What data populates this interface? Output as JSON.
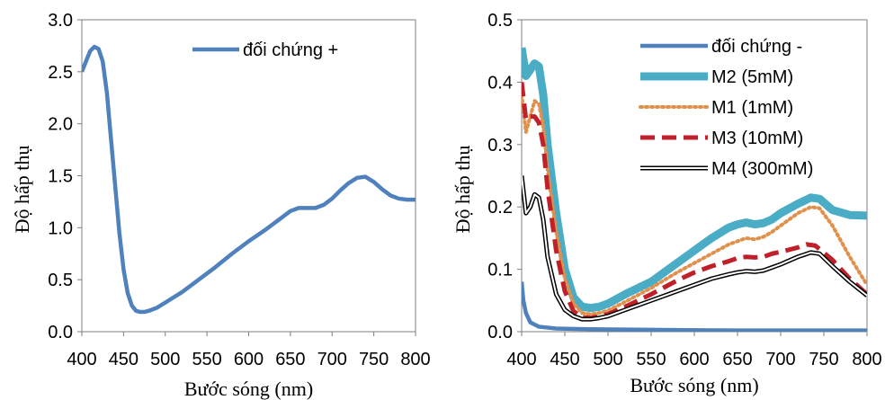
{
  "chart_data": [
    {
      "type": "line",
      "xlabel": "Bước sóng (nm)",
      "ylabel": "Độ hấp thụ",
      "xlim": [
        400,
        800
      ],
      "ylim": [
        0,
        3.0
      ],
      "x_ticks": [
        "400",
        "450",
        "500",
        "550",
        "600",
        "650",
        "700",
        "750",
        "800"
      ],
      "y_ticks": [
        "0.0",
        "0.5",
        "1.0",
        "1.5",
        "2.0",
        "2.5",
        "3.0"
      ],
      "grid": false,
      "legend": "top-right",
      "series": [
        {
          "name": "đối chứng +",
          "color": "#4F81BD",
          "style": "solid",
          "points": [
            [
              400,
              2.5
            ],
            [
              405,
              2.6
            ],
            [
              410,
              2.7
            ],
            [
              415,
              2.74
            ],
            [
              420,
              2.72
            ],
            [
              425,
              2.6
            ],
            [
              430,
              2.3
            ],
            [
              435,
              1.85
            ],
            [
              440,
              1.4
            ],
            [
              445,
              0.95
            ],
            [
              450,
              0.6
            ],
            [
              455,
              0.37
            ],
            [
              460,
              0.25
            ],
            [
              465,
              0.2
            ],
            [
              470,
              0.19
            ],
            [
              475,
              0.19
            ],
            [
              480,
              0.2
            ],
            [
              490,
              0.23
            ],
            [
              500,
              0.28
            ],
            [
              520,
              0.38
            ],
            [
              540,
              0.5
            ],
            [
              560,
              0.62
            ],
            [
              580,
              0.75
            ],
            [
              600,
              0.87
            ],
            [
              620,
              0.98
            ],
            [
              640,
              1.1
            ],
            [
              650,
              1.16
            ],
            [
              660,
              1.19
            ],
            [
              670,
              1.19
            ],
            [
              680,
              1.19
            ],
            [
              690,
              1.22
            ],
            [
              700,
              1.28
            ],
            [
              710,
              1.36
            ],
            [
              720,
              1.43
            ],
            [
              730,
              1.48
            ],
            [
              740,
              1.49
            ],
            [
              750,
              1.44
            ],
            [
              760,
              1.37
            ],
            [
              770,
              1.31
            ],
            [
              780,
              1.28
            ],
            [
              790,
              1.27
            ],
            [
              800,
              1.27
            ]
          ]
        }
      ]
    },
    {
      "type": "line",
      "xlabel": "Bước sóng (nm)",
      "ylabel": "Độ hấp thụ",
      "xlim": [
        400,
        800
      ],
      "ylim": [
        0,
        0.5
      ],
      "x_ticks": [
        "400",
        "450",
        "500",
        "550",
        "600",
        "650",
        "700",
        "750",
        "800"
      ],
      "y_ticks": [
        "0.0",
        "0.1",
        "0.2",
        "0.3",
        "0.4",
        "0.5"
      ],
      "grid": false,
      "legend": "top-right",
      "series": [
        {
          "name": "đối chứng -",
          "color": "#4F81BD",
          "style": "solid",
          "points": [
            [
              400,
              0.08
            ],
            [
              402,
              0.05
            ],
            [
              405,
              0.03
            ],
            [
              410,
              0.015
            ],
            [
              420,
              0.008
            ],
            [
              440,
              0.005
            ],
            [
              480,
              0.004
            ],
            [
              550,
              0.003
            ],
            [
              650,
              0.002
            ],
            [
              800,
              0.002
            ]
          ]
        },
        {
          "name": "M2 (5mM)",
          "color": "#4BACC6",
          "style": "thick",
          "points": [
            [
              400,
              0.455
            ],
            [
              405,
              0.41
            ],
            [
              410,
              0.42
            ],
            [
              415,
              0.43
            ],
            [
              420,
              0.425
            ],
            [
              425,
              0.38
            ],
            [
              430,
              0.3
            ],
            [
              440,
              0.19
            ],
            [
              450,
              0.1
            ],
            [
              460,
              0.055
            ],
            [
              470,
              0.04
            ],
            [
              480,
              0.038
            ],
            [
              490,
              0.04
            ],
            [
              500,
              0.045
            ],
            [
              520,
              0.06
            ],
            [
              550,
              0.08
            ],
            [
              580,
              0.11
            ],
            [
              600,
              0.13
            ],
            [
              620,
              0.15
            ],
            [
              640,
              0.167
            ],
            [
              650,
              0.172
            ],
            [
              660,
              0.175
            ],
            [
              670,
              0.172
            ],
            [
              680,
              0.174
            ],
            [
              690,
              0.18
            ],
            [
              700,
              0.19
            ],
            [
              720,
              0.205
            ],
            [
              735,
              0.215
            ],
            [
              745,
              0.213
            ],
            [
              760,
              0.195
            ],
            [
              780,
              0.187
            ],
            [
              800,
              0.186
            ]
          ]
        },
        {
          "name": "M1  (1mM)",
          "color": "#E0904A",
          "style": "dotted",
          "points": [
            [
              400,
              0.38
            ],
            [
              405,
              0.32
            ],
            [
              410,
              0.345
            ],
            [
              415,
              0.37
            ],
            [
              420,
              0.365
            ],
            [
              425,
              0.33
            ],
            [
              430,
              0.26
            ],
            [
              440,
              0.16
            ],
            [
              450,
              0.085
            ],
            [
              460,
              0.045
            ],
            [
              470,
              0.03
            ],
            [
              480,
              0.028
            ],
            [
              490,
              0.03
            ],
            [
              500,
              0.034
            ],
            [
              520,
              0.048
            ],
            [
              550,
              0.07
            ],
            [
              580,
              0.095
            ],
            [
              600,
              0.11
            ],
            [
              620,
              0.125
            ],
            [
              640,
              0.14
            ],
            [
              650,
              0.145
            ],
            [
              660,
              0.15
            ],
            [
              670,
              0.148
            ],
            [
              680,
              0.152
            ],
            [
              690,
              0.16
            ],
            [
              700,
              0.17
            ],
            [
              720,
              0.19
            ],
            [
              735,
              0.2
            ],
            [
              745,
              0.198
            ],
            [
              760,
              0.17
            ],
            [
              780,
              0.12
            ],
            [
              800,
              0.075
            ]
          ]
        },
        {
          "name": "M3 (10mM)",
          "color": "#C0202A",
          "style": "dashed",
          "points": [
            [
              400,
              0.4
            ],
            [
              405,
              0.34
            ],
            [
              410,
              0.345
            ],
            [
              415,
              0.345
            ],
            [
              420,
              0.335
            ],
            [
              425,
              0.3
            ],
            [
              430,
              0.23
            ],
            [
              440,
              0.13
            ],
            [
              450,
              0.065
            ],
            [
              460,
              0.033
            ],
            [
              470,
              0.023
            ],
            [
              480,
              0.022
            ],
            [
              490,
              0.025
            ],
            [
              500,
              0.028
            ],
            [
              520,
              0.04
            ],
            [
              550,
              0.06
            ],
            [
              580,
              0.082
            ],
            [
              600,
              0.095
            ],
            [
              620,
              0.105
            ],
            [
              640,
              0.113
            ],
            [
              650,
              0.118
            ],
            [
              660,
              0.12
            ],
            [
              670,
              0.119
            ],
            [
              680,
              0.12
            ],
            [
              690,
              0.125
            ],
            [
              700,
              0.128
            ],
            [
              720,
              0.135
            ],
            [
              730,
              0.14
            ],
            [
              740,
              0.138
            ],
            [
              760,
              0.115
            ],
            [
              780,
              0.085
            ],
            [
              800,
              0.06
            ]
          ]
        },
        {
          "name": "M4 (300mM)",
          "color": "#000000",
          "style": "double",
          "points": [
            [
              400,
              0.25
            ],
            [
              405,
              0.19
            ],
            [
              410,
              0.2
            ],
            [
              415,
              0.22
            ],
            [
              420,
              0.215
            ],
            [
              425,
              0.18
            ],
            [
              430,
              0.12
            ],
            [
              440,
              0.06
            ],
            [
              450,
              0.035
            ],
            [
              460,
              0.025
            ],
            [
              470,
              0.02
            ],
            [
              480,
              0.02
            ],
            [
              490,
              0.022
            ],
            [
              500,
              0.025
            ],
            [
              520,
              0.035
            ],
            [
              550,
              0.05
            ],
            [
              580,
              0.065
            ],
            [
              600,
              0.075
            ],
            [
              620,
              0.085
            ],
            [
              640,
              0.092
            ],
            [
              650,
              0.095
            ],
            [
              660,
              0.097
            ],
            [
              670,
              0.096
            ],
            [
              680,
              0.098
            ],
            [
              690,
              0.103
            ],
            [
              700,
              0.108
            ],
            [
              720,
              0.12
            ],
            [
              735,
              0.127
            ],
            [
              745,
              0.125
            ],
            [
              760,
              0.105
            ],
            [
              780,
              0.08
            ],
            [
              800,
              0.058
            ]
          ]
        }
      ]
    }
  ]
}
